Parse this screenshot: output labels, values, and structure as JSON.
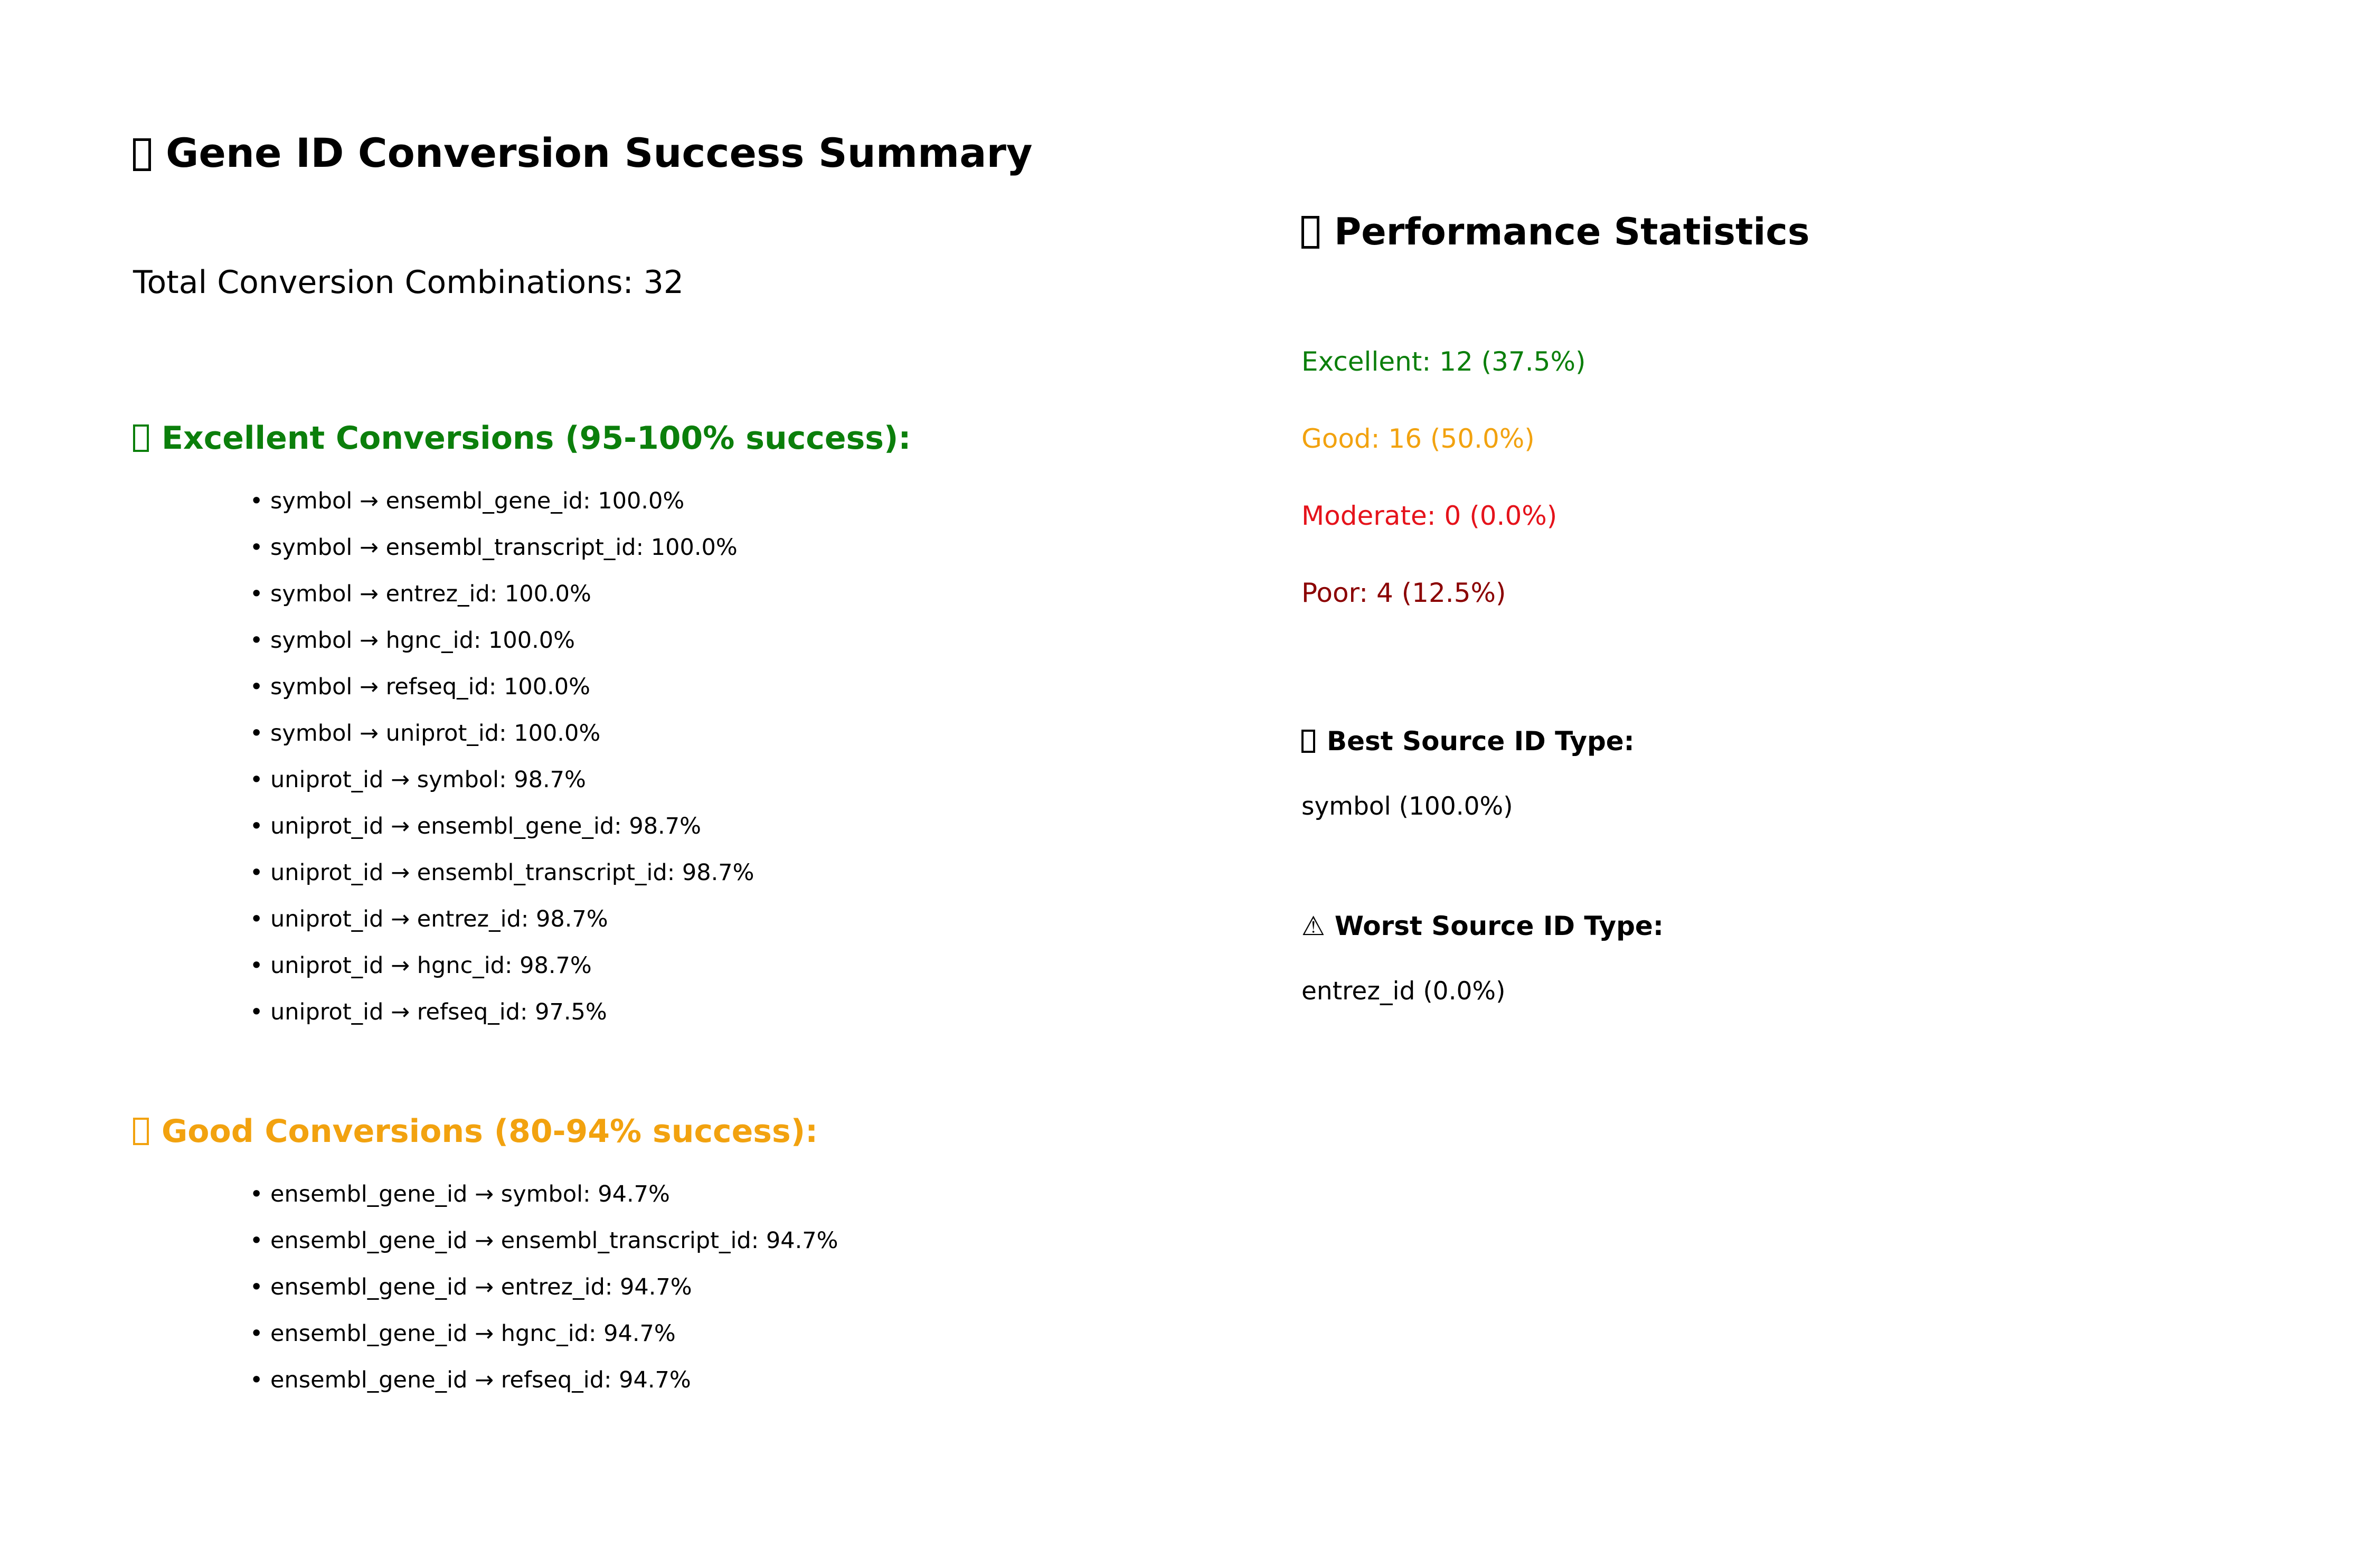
{
  "title": {
    "icon": "missing-glyph-icon",
    "text": "Gene ID Conversion Success Summary"
  },
  "total_combinations": "Total Conversion Combinations: 32",
  "excellent": {
    "icon": "missing-glyph-icon",
    "heading": "Excellent Conversions (95-100% success):",
    "color": "#0b7f0b",
    "items": [
      "• symbol → ensembl_gene_id: 100.0%",
      "• symbol → ensembl_transcript_id: 100.0%",
      "• symbol → entrez_id: 100.0%",
      "• symbol → hgnc_id: 100.0%",
      "• symbol → refseq_id: 100.0%",
      "• symbol → uniprot_id: 100.0%",
      "• uniprot_id → symbol: 98.7%",
      "• uniprot_id → ensembl_gene_id: 98.7%",
      "• uniprot_id → ensembl_transcript_id: 98.7%",
      "• uniprot_id → entrez_id: 98.7%",
      "• uniprot_id → hgnc_id: 98.7%",
      "• uniprot_id → refseq_id: 97.5%"
    ]
  },
  "good": {
    "icon": "missing-glyph-icon",
    "heading": "Good Conversions (80-94% success):",
    "color": "#f2a20f",
    "items": [
      "• ensembl_gene_id → symbol: 94.7%",
      "• ensembl_gene_id → ensembl_transcript_id: 94.7%",
      "• ensembl_gene_id → entrez_id: 94.7%",
      "• ensembl_gene_id → hgnc_id: 94.7%",
      "• ensembl_gene_id → refseq_id: 94.7%"
    ]
  },
  "performance": {
    "icon": "missing-glyph-icon",
    "heading": "Performance Statistics",
    "stats": [
      {
        "text": "Excellent: 12 (37.5%)",
        "color": "#0b7f0b"
      },
      {
        "text": "Good: 16 (50.0%)",
        "color": "#f2a20f"
      },
      {
        "text": "Moderate: 0 (0.0%)",
        "color": "#e5131b"
      },
      {
        "text": "Poor: 4 (12.5%)",
        "color": "#8b0000"
      }
    ]
  },
  "best_source": {
    "icon": "missing-glyph-icon",
    "heading": "Best Source ID Type:",
    "value": "symbol (100.0%)"
  },
  "worst_source": {
    "icon": "warning-icon",
    "glyph": "⚠",
    "heading": "Worst Source ID Type:",
    "value": "entrez_id (0.0%)"
  }
}
